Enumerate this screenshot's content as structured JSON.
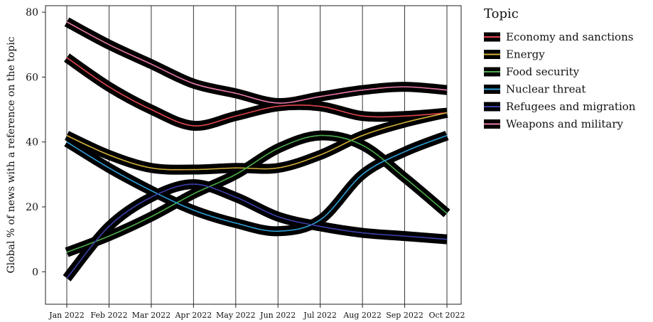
{
  "chart_data": {
    "type": "line",
    "title": "",
    "xlabel": "",
    "ylabel": "Global % of news with a reference on the topic",
    "categories": [
      "Jan 2022",
      "Feb 2022",
      "Mar 2022",
      "Apr 2022",
      "May 2022",
      "Jun 2022",
      "Jul 2022",
      "Aug 2022",
      "Sep 2022",
      "Oct 2022"
    ],
    "ylim": [
      -10,
      82
    ],
    "yticks": [
      0,
      20,
      40,
      60,
      80
    ],
    "grid": "vertical",
    "legend": {
      "title": "Topic",
      "position": "right"
    },
    "series": [
      {
        "name": "Economy and sanctions",
        "color": "#e0454e",
        "values": [
          66,
          57,
          50,
          45,
          48,
          51,
          51,
          48,
          48,
          49
        ]
      },
      {
        "name": "Energy",
        "color": "#d4b13a",
        "values": [
          42,
          36,
          32,
          31.5,
          32,
          32,
          36,
          42,
          46,
          49
        ]
      },
      {
        "name": "Food security",
        "color": "#4aab4a",
        "values": [
          6,
          11,
          17,
          24,
          30,
          38,
          42,
          39,
          29,
          18
        ]
      },
      {
        "name": "Nuclear threat",
        "color": "#2da0d8",
        "values": [
          40,
          32,
          25,
          19,
          15,
          12.5,
          16,
          30,
          37,
          42
        ]
      },
      {
        "name": "Refugees and migration",
        "color": "#3b3fa8",
        "values": [
          -2,
          14,
          23,
          27,
          23,
          17,
          14,
          12,
          11,
          10
        ]
      },
      {
        "name": "Weapons and military",
        "color": "#e87aa8",
        "values": [
          77,
          70,
          64,
          58,
          55,
          52,
          54,
          56,
          57,
          56
        ]
      }
    ]
  }
}
